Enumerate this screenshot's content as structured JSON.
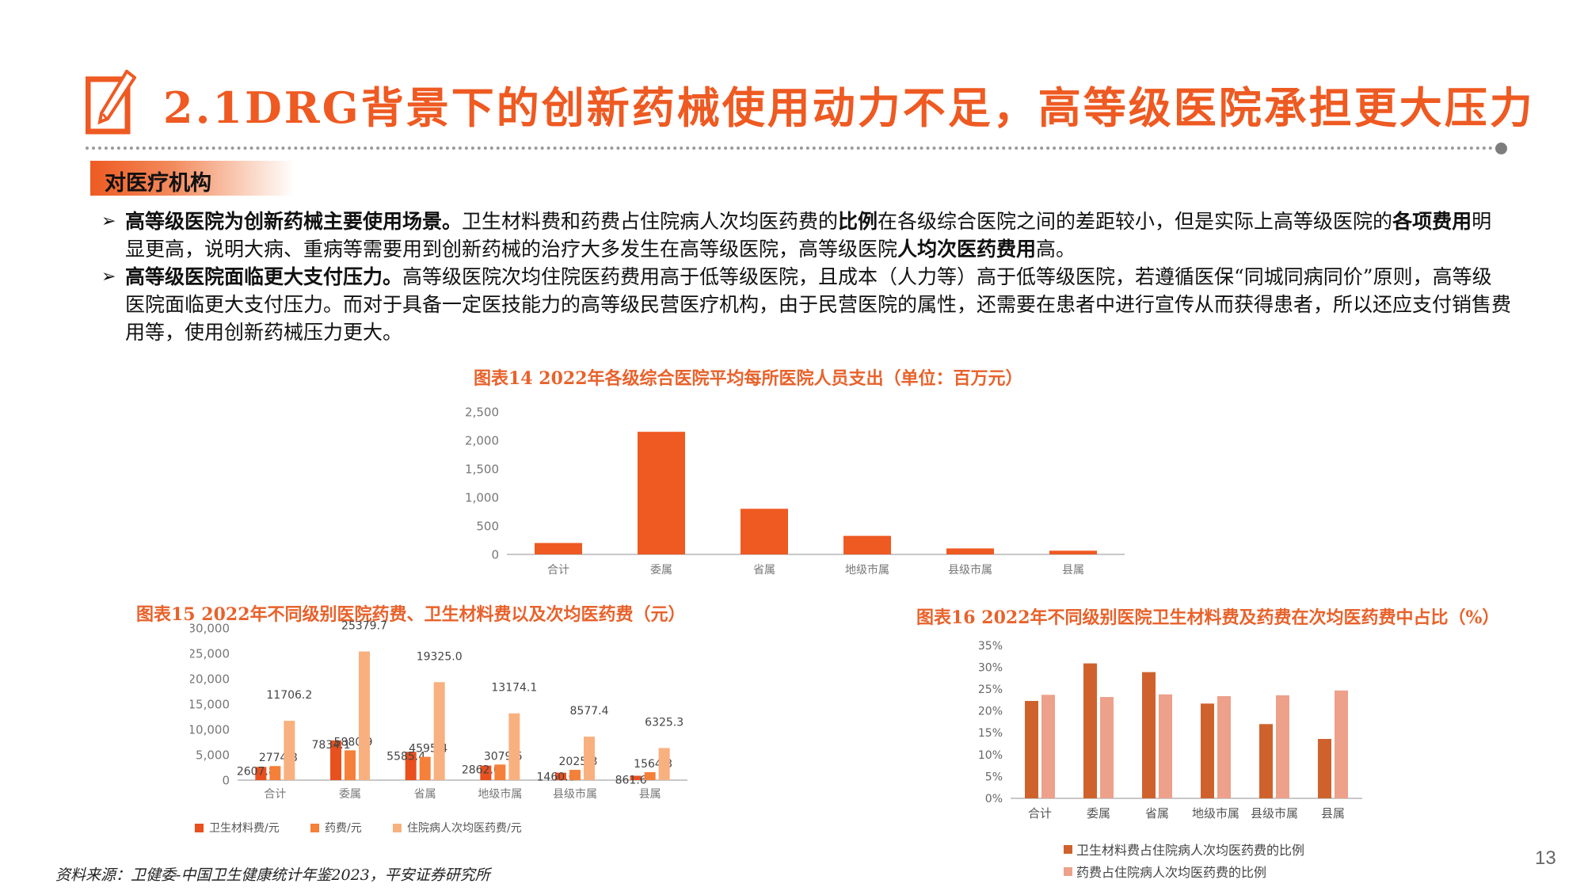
{
  "header": {
    "title": "2.1DRG背景下的创新药械使用动力不足，高等级医院承担更大压力",
    "icon": "pencil-checkbox-icon",
    "accent_color": "#ee5a22"
  },
  "section": {
    "tag": "对医疗机构"
  },
  "paragraphs": [
    {
      "bullet": "➢",
      "segments": [
        {
          "text": "高等级医院为创新药械主要使用场景。",
          "bold": true
        },
        {
          "text": "卫生材料费和药费占住院病人次均医药费的",
          "bold": false
        },
        {
          "text": "比例",
          "bold": true
        },
        {
          "text": "在各级综合医院之间的差距较小，但是实际上高等级医院的",
          "bold": false
        },
        {
          "text": "各项费用",
          "bold": true
        },
        {
          "text": "明显更高，说明大病、重病等需要用到创新药械的治疗大多发生在高等级医院，高等级医院",
          "bold": false
        },
        {
          "text": "人均次医药费用",
          "bold": true
        },
        {
          "text": "高。",
          "bold": false
        }
      ]
    },
    {
      "bullet": "➢",
      "segments": [
        {
          "text": "高等级医院面临更大支付压力。",
          "bold": true
        },
        {
          "text": "高等级医院次均住院医药费用高于低等级医院，且成本（人力等）高于低等级医院，若遵循医保“同城同病同价”原则，高等级医院面临更大支付压力。而对于具备一定医技能力的高等级民营医疗机构，由于民营医院的属性，还需要在患者中进行宣传从而获得患者，所以还应支付销售费用等，使用创新药械压力更大。",
          "bold": false
        }
      ]
    }
  ],
  "chart_data": [
    {
      "id": "chart14",
      "type": "bar",
      "title": "图表14 2022年各级综合医院平均每所医院人员支出（单位：百万元）",
      "categories": [
        "合计",
        "委属",
        "省属",
        "地级市属",
        "县级市属",
        "县属"
      ],
      "values": [
        200,
        2150,
        800,
        325,
        105,
        65
      ],
      "xlabel": "",
      "ylabel": "",
      "yticks": [
        "0",
        "500",
        "1,000",
        "1,500",
        "2,000",
        "2,500"
      ],
      "ylim": [
        0,
        2500
      ],
      "grid": false,
      "color": "#ee5a22"
    },
    {
      "id": "chart15",
      "type": "bar",
      "title": "图表15 2022年不同级别医院药费、卫生材料费以及次均医药费（元）",
      "categories": [
        "合计",
        "委属",
        "省属",
        "地级市属",
        "县级市属",
        "县属"
      ],
      "series": [
        {
          "name": "卫生材料费/元",
          "values": [
            2607.8,
            7834.1,
            5585.4,
            2862.0,
            1460.6,
            861.6
          ],
          "labels": [
            "2607.8",
            "7834.1",
            "5585.4",
            "2862.0",
            "1460.6",
            "861.6"
          ],
          "color": "#e8501e"
        },
        {
          "name": "药费/元",
          "values": [
            2774.8,
            5880.9,
            4595.4,
            3079.5,
            2025.3,
            1564.3
          ],
          "labels": [
            "2774.8",
            "5880.9",
            "4595.4",
            "3079.5",
            "2025.3",
            "1564.3"
          ],
          "color": "#f5803a"
        },
        {
          "name": "住院病人次均医药费/元",
          "values": [
            11706.2,
            25379.7,
            19325.0,
            13174.1,
            8577.4,
            6325.3
          ],
          "labels": [
            "11706.2",
            "25379.7",
            "19325.0",
            "13174.1",
            "8577.4",
            "6325.3"
          ],
          "color": "#f9b07f"
        }
      ],
      "yticks": [
        "0",
        "5,000",
        "10,000",
        "15,000",
        "20,000",
        "25,000",
        "30,000"
      ],
      "ylim": [
        0,
        30000
      ],
      "grid": false,
      "legend_position": "bottom"
    },
    {
      "id": "chart16",
      "type": "bar",
      "title": "图表16 2022年不同级别医院卫生材料费及药费在次均医药费中占比（%）",
      "categories": [
        "合计",
        "委属",
        "省属",
        "地级市属",
        "县级市属",
        "县属"
      ],
      "series": [
        {
          "name": "卫生材料费占住院病人次均医药费的比例",
          "values": [
            22.3,
            30.9,
            28.9,
            21.7,
            17.0,
            13.6
          ],
          "color": "#cf622c"
        },
        {
          "name": "药费占住院病人次均医药费的比例",
          "values": [
            23.7,
            23.2,
            23.8,
            23.4,
            23.6,
            24.7
          ],
          "color": "#eda08a"
        }
      ],
      "yticks": [
        "0%",
        "5%",
        "10%",
        "15%",
        "20%",
        "25%",
        "30%",
        "35%"
      ],
      "ylim": [
        0,
        35
      ],
      "grid": false,
      "legend_position": "bottom"
    }
  ],
  "footer": {
    "source": "资料来源：卫健委-中国卫生健康统计年鉴2023，平安证券研究所",
    "page_number": "13"
  }
}
